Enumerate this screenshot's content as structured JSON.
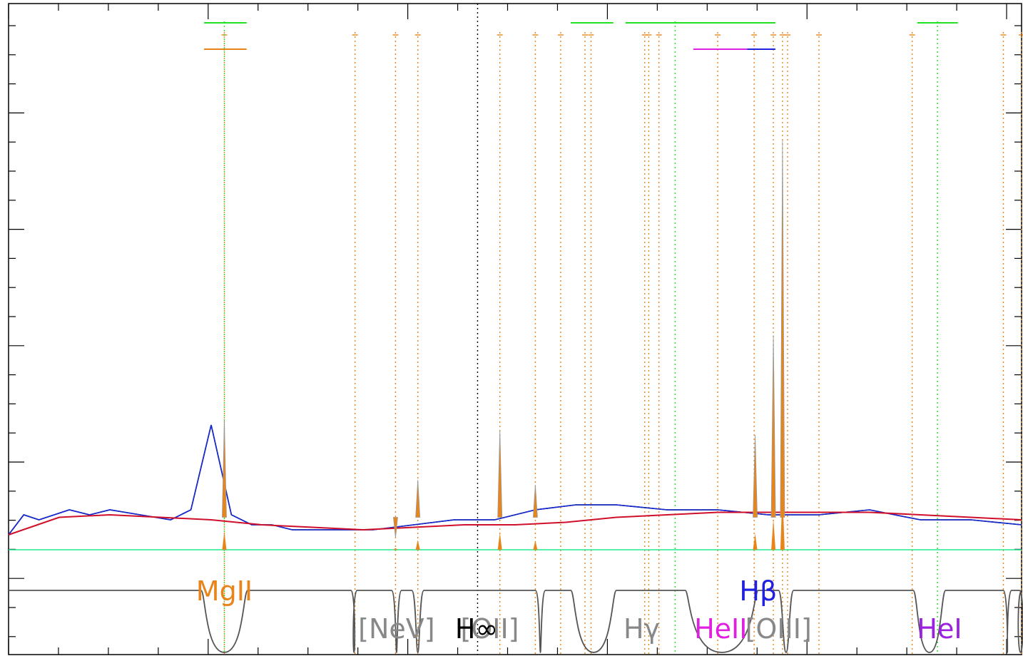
{
  "chart_data": {
    "type": "line",
    "title": "",
    "xlabel": "",
    "ylabel": "",
    "grid": false,
    "xlim": [
      0,
      1000
    ],
    "ylim": [
      -0.15,
      1.0
    ],
    "series": [
      {
        "name": "",
        "role": "observed",
        "color": "#000000",
        "x": [
          0,
          15,
          30,
          45,
          60,
          80,
          100,
          130,
          160,
          180,
          200,
          220,
          240,
          260,
          280,
          300,
          330,
          360,
          400,
          440,
          480,
          520,
          560,
          600,
          650,
          700,
          750,
          800,
          850,
          900,
          950,
          1000
        ],
        "y": [
          0.03,
          0.07,
          0.06,
          0.07,
          0.08,
          0.07,
          0.08,
          0.07,
          0.06,
          0.08,
          0.25,
          0.07,
          0.05,
          0.05,
          0.04,
          0.04,
          0.04,
          0.04,
          0.05,
          0.06,
          0.06,
          0.08,
          0.09,
          0.09,
          0.08,
          0.08,
          0.07,
          0.07,
          0.08,
          0.06,
          0.06,
          0.05
        ]
      },
      {
        "name": "",
        "role": "model",
        "color": "#1428d8",
        "x": [
          0,
          15,
          30,
          45,
          60,
          80,
          100,
          130,
          160,
          180,
          200,
          220,
          240,
          260,
          280,
          300,
          330,
          360,
          400,
          440,
          480,
          520,
          560,
          600,
          650,
          700,
          750,
          800,
          850,
          900,
          950,
          1000
        ],
        "y": [
          0.03,
          0.07,
          0.06,
          0.07,
          0.08,
          0.07,
          0.08,
          0.07,
          0.06,
          0.08,
          0.25,
          0.07,
          0.05,
          0.05,
          0.04,
          0.04,
          0.04,
          0.04,
          0.05,
          0.06,
          0.06,
          0.08,
          0.09,
          0.09,
          0.08,
          0.08,
          0.07,
          0.07,
          0.08,
          0.06,
          0.06,
          0.05
        ]
      },
      {
        "name": "",
        "role": "continuum",
        "color": "#d0102a",
        "x": [
          0,
          50,
          100,
          150,
          200,
          250,
          300,
          350,
          400,
          450,
          500,
          550,
          600,
          650,
          700,
          750,
          800,
          850,
          900,
          950,
          1000
        ],
        "y": [
          0.03,
          0.065,
          0.07,
          0.065,
          0.06,
          0.05,
          0.045,
          0.04,
          0.045,
          0.05,
          0.05,
          0.055,
          0.065,
          0.07,
          0.075,
          0.075,
          0.075,
          0.075,
          0.07,
          0.065,
          0.06
        ]
      },
      {
        "name": "",
        "role": "residual",
        "color": "#20e890",
        "x": [
          0,
          100,
          200,
          300,
          400,
          500,
          600,
          700,
          800,
          900,
          1000
        ],
        "y": [
          0,
          0,
          0,
          0,
          0,
          0,
          0,
          0,
          0,
          0,
          0
        ]
      }
    ],
    "emission_lines": [
      {
        "x": 213,
        "peak": 0.26,
        "color": "#e8851a"
      },
      {
        "x": 382,
        "peak": 0.024,
        "color": "#e8851a"
      },
      {
        "x": 404,
        "peak": 0.14,
        "color": "#e8851a"
      },
      {
        "x": 485,
        "peak": 0.24,
        "color": "#e8851a"
      },
      {
        "x": 520,
        "peak": 0.13,
        "color": "#e8851a"
      },
      {
        "x": 737,
        "peak": 0.23,
        "color": "#e8851a"
      },
      {
        "x": 755,
        "peak": 0.43,
        "color": "#e8851a"
      },
      {
        "x": 764,
        "peak": 0.82,
        "color": "#e8851a"
      }
    ],
    "vlines_orange": [
      213,
      342,
      382,
      404,
      485,
      520,
      545,
      569,
      575,
      628,
      632,
      642,
      700,
      736,
      755,
      764,
      769,
      800,
      892,
      982,
      1000
    ],
    "vlines_green": [
      213,
      658,
      917
    ],
    "vline_black": 463,
    "segments_top": [
      {
        "x1": 193,
        "x2": 235,
        "level": 1,
        "color": "#20e020"
      },
      {
        "x1": 193,
        "x2": 235,
        "level": 2,
        "color": "#e8851a"
      },
      {
        "x1": 555,
        "x2": 597,
        "level": 1,
        "color": "#20e020"
      },
      {
        "x1": 609,
        "x2": 757,
        "level": 1,
        "color": "#20e020"
      },
      {
        "x1": 897,
        "x2": 937,
        "level": 1,
        "color": "#20e020"
      },
      {
        "x1": 676,
        "x2": 729,
        "level": 2,
        "color": "#e020e0"
      },
      {
        "x1": 729,
        "x2": 757,
        "level": 2,
        "color": "#2020e0"
      }
    ],
    "line_labels": [
      {
        "text": "MgII",
        "x": 213,
        "row": "upper",
        "color": "#e8851a"
      },
      {
        "text": "[NeV]",
        "x": 383,
        "row": "lower",
        "color": "#888888"
      },
      {
        "text": "[OII]",
        "x": 475,
        "row": "lower",
        "color": "#888888"
      },
      {
        "text": "H∞",
        "x": 462,
        "row": "lower",
        "color": "#000000"
      },
      {
        "text": "Hγ",
        "x": 625,
        "row": "lower",
        "color": "#888888"
      },
      {
        "text": "HeII",
        "x": 703,
        "row": "lower",
        "color": "#e020e0"
      },
      {
        "text": "Hβ",
        "x": 740,
        "row": "upper",
        "color": "#2020e0"
      },
      {
        "text": "[OIII]",
        "x": 760,
        "row": "lower",
        "color": "#888888"
      },
      {
        "text": "HeI",
        "x": 919,
        "row": "lower",
        "color": "#9b20e0"
      }
    ]
  }
}
